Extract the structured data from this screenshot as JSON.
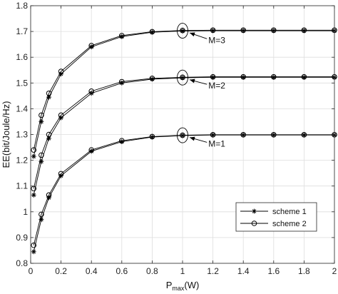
{
  "chart_data": {
    "type": "line",
    "title": "",
    "xlabel": "P",
    "xlabel_sub": "max",
    "xlabel_unit": "(W)",
    "ylabel": "EE(bit/Joule/Hz)",
    "xlim": [
      0,
      2
    ],
    "ylim": [
      0.8,
      1.8
    ],
    "xticks": [
      0,
      0.2,
      0.4,
      0.6,
      0.8,
      1,
      1.2,
      1.4,
      1.6,
      1.8,
      2
    ],
    "xtick_labels": [
      "0",
      "0.2",
      "0.4",
      "0.6",
      "0.8",
      "1",
      "1.2",
      "1.4",
      "1.6",
      "1.8",
      "2"
    ],
    "yticks": [
      0.8,
      0.9,
      1,
      1.1,
      1.2,
      1.3,
      1.4,
      1.5,
      1.6,
      1.7,
      1.8
    ],
    "ytick_labels": [
      "0.8",
      "0.9",
      "1",
      "1.1",
      "1.2",
      "1.3",
      "1.4",
      "1.5",
      "1.6",
      "1.7",
      "1.8"
    ],
    "grid": true,
    "legend_position": "bottom-right",
    "x": [
      0.02,
      0.07,
      0.12,
      0.2,
      0.4,
      0.6,
      0.8,
      1,
      1.2,
      1.4,
      1.6,
      1.8,
      2
    ],
    "series": [
      {
        "name": "scheme 1",
        "marker": "star",
        "group": "M=1",
        "values": [
          0.845,
          0.97,
          1.055,
          1.14,
          1.235,
          1.272,
          1.29,
          1.296,
          1.298,
          1.298,
          1.298,
          1.298,
          1.298
        ]
      },
      {
        "name": "scheme 2",
        "marker": "circle",
        "group": "M=1",
        "values": [
          0.87,
          0.99,
          1.065,
          1.148,
          1.24,
          1.276,
          1.292,
          1.297,
          1.299,
          1.299,
          1.299,
          1.299,
          1.299
        ]
      },
      {
        "name": "scheme 1",
        "marker": "star",
        "group": "M=2",
        "values": [
          1.065,
          1.195,
          1.285,
          1.365,
          1.46,
          1.5,
          1.515,
          1.52,
          1.522,
          1.522,
          1.522,
          1.522,
          1.522
        ]
      },
      {
        "name": "scheme 2",
        "marker": "circle",
        "group": "M=2",
        "values": [
          1.09,
          1.22,
          1.3,
          1.375,
          1.468,
          1.505,
          1.518,
          1.522,
          1.524,
          1.524,
          1.524,
          1.524,
          1.524
        ]
      },
      {
        "name": "scheme 1",
        "marker": "star",
        "group": "M=3",
        "values": [
          1.215,
          1.35,
          1.445,
          1.535,
          1.64,
          1.68,
          1.697,
          1.702,
          1.703,
          1.703,
          1.703,
          1.703,
          1.703
        ]
      },
      {
        "name": "scheme 2",
        "marker": "circle",
        "group": "M=3",
        "values": [
          1.24,
          1.375,
          1.46,
          1.545,
          1.645,
          1.684,
          1.699,
          1.704,
          1.705,
          1.705,
          1.705,
          1.705,
          1.705
        ]
      }
    ],
    "annotations": [
      {
        "text": "M=3",
        "target_x": 1,
        "target_y": 1.703,
        "label_x": 1.17,
        "label_y": 1.655
      },
      {
        "text": "M=2",
        "target_x": 1,
        "target_y": 1.521,
        "label_x": 1.17,
        "label_y": 1.478
      },
      {
        "text": "M=1",
        "target_x": 1,
        "target_y": 1.297,
        "label_x": 1.17,
        "label_y": 1.253
      }
    ],
    "legend": [
      {
        "label": "scheme 1",
        "marker": "star"
      },
      {
        "label": "scheme 2",
        "marker": "circle"
      }
    ]
  }
}
